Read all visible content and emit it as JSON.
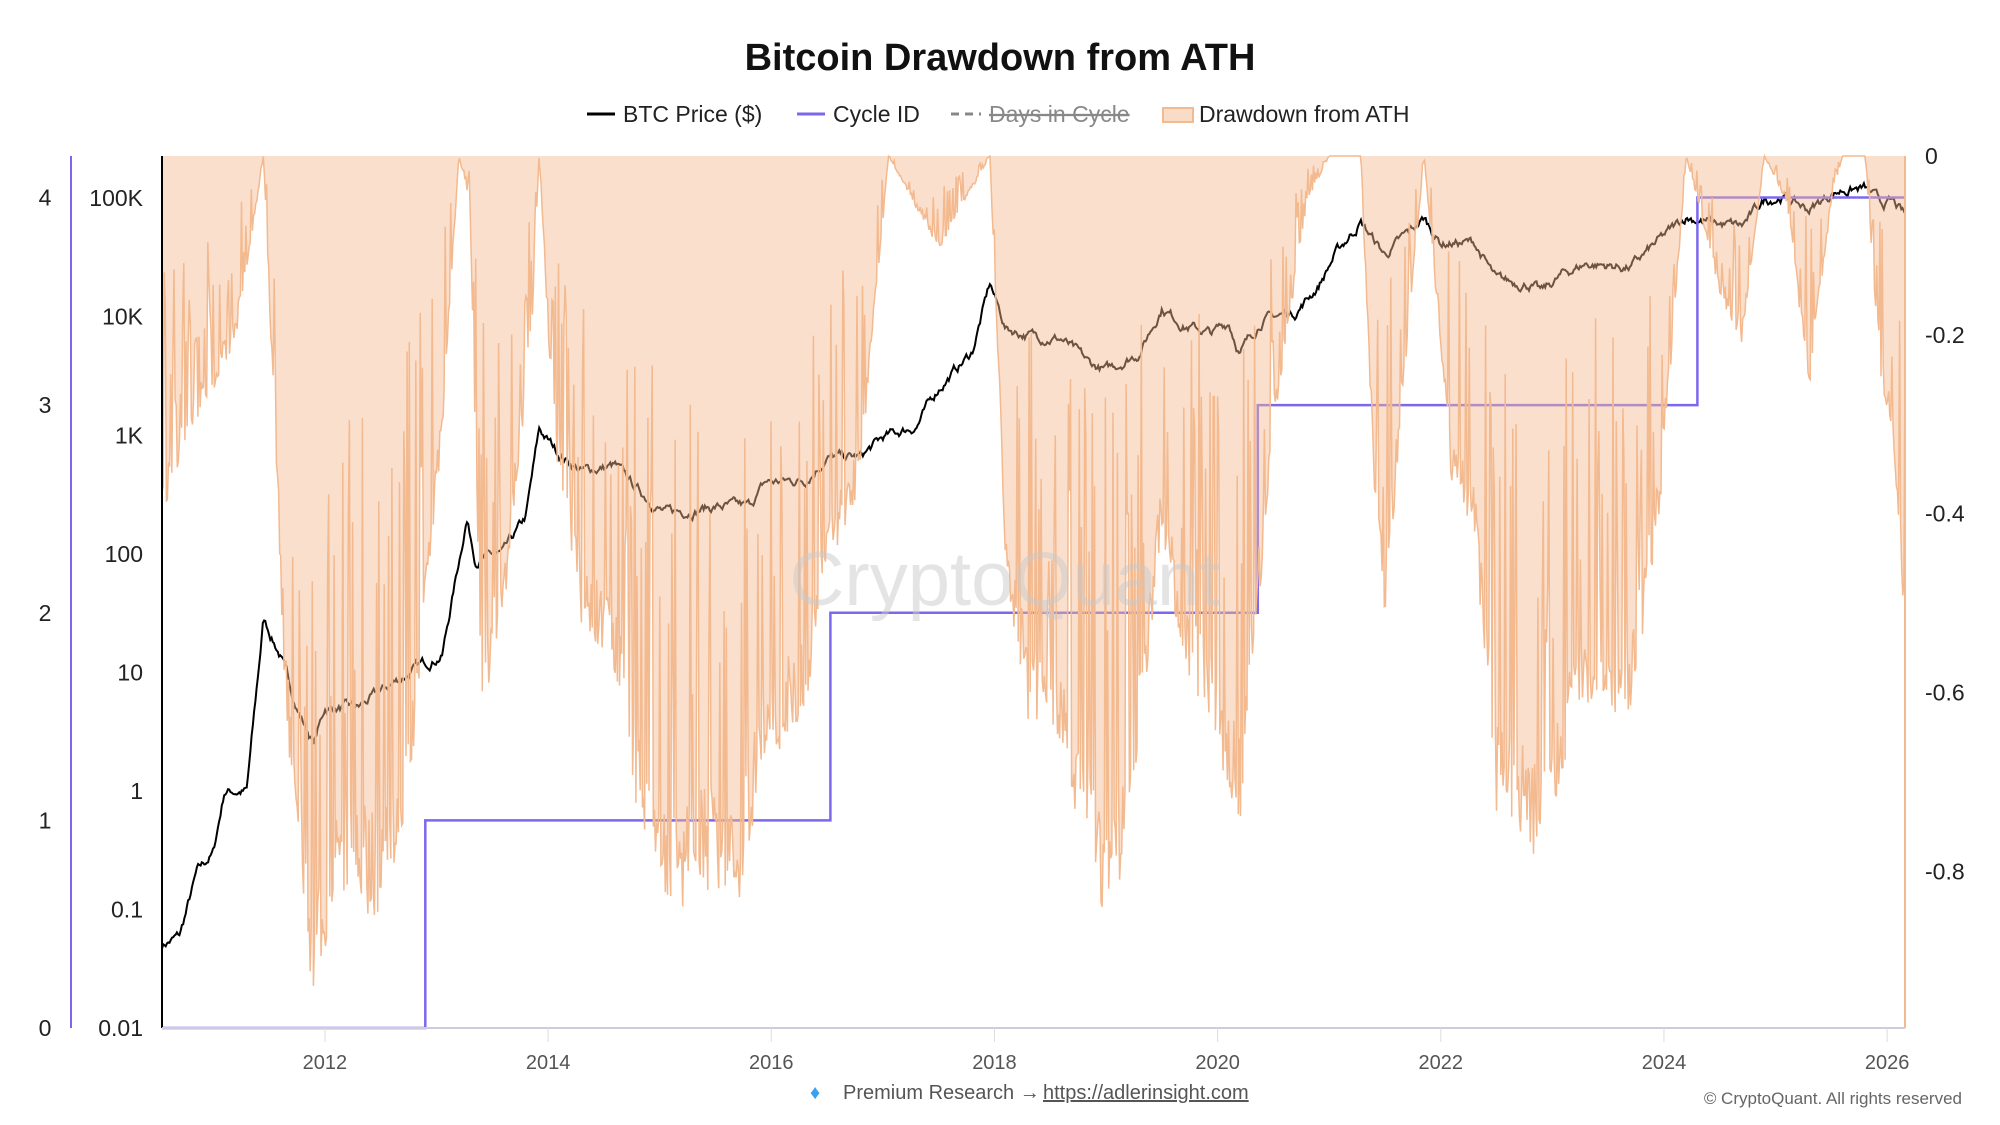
{
  "chart_data": {
    "type": "line",
    "title": "Bitcoin Drawdown from ATH",
    "legend": [
      {
        "label": "BTC Price ($)",
        "color": "#000000",
        "style": "solid"
      },
      {
        "label": "Cycle ID",
        "color": "#7b68ee",
        "style": "solid"
      },
      {
        "label": "Days in Cycle",
        "color": "#888888",
        "style": "dashed-hidden"
      },
      {
        "label": "Drawdown from ATH",
        "color": "#f3b98f",
        "style": "area"
      }
    ],
    "legend_placement": "top-center",
    "x_range": [
      2010.54,
      2026.16
    ],
    "x_ticks": [
      "2012",
      "2014",
      "2016",
      "2018",
      "2020",
      "2022",
      "2024",
      "2026"
    ],
    "price_axis": {
      "scale": "log",
      "range": [
        0.01,
        227000
      ],
      "ticks": [
        "0.01",
        "0.1",
        "1",
        "10",
        "100",
        "1K",
        "10K",
        "100K"
      ],
      "tick_values": [
        0.01,
        0.1,
        1,
        10,
        100,
        1000,
        10000,
        100000
      ]
    },
    "cycle_axis": {
      "range": [
        0,
        4.2
      ],
      "ticks": [
        "0",
        "1",
        "2",
        "3",
        "4"
      ]
    },
    "drawdown_axis": {
      "range": [
        -0.975,
        0
      ],
      "ticks": [
        "0",
        "-0.2",
        "-0.4",
        "-0.6",
        "-0.8"
      ],
      "tick_values": [
        0,
        -0.2,
        -0.4,
        -0.6,
        -0.8
      ]
    },
    "series": [
      {
        "name": "BTC Price ($)",
        "points": [
          [
            2010.54,
            0.05
          ],
          [
            2010.7,
            0.06
          ],
          [
            2010.85,
            0.2
          ],
          [
            2011.0,
            0.3
          ],
          [
            2011.1,
            1
          ],
          [
            2011.3,
            1
          ],
          [
            2011.45,
            28
          ],
          [
            2011.6,
            14
          ],
          [
            2011.75,
            5
          ],
          [
            2011.9,
            2.5
          ],
          [
            2012.0,
            5
          ],
          [
            2012.3,
            5
          ],
          [
            2012.6,
            8
          ],
          [
            2012.9,
            12
          ],
          [
            2013.05,
            14
          ],
          [
            2013.27,
            200
          ],
          [
            2013.35,
            90
          ],
          [
            2013.6,
            100
          ],
          [
            2013.8,
            200
          ],
          [
            2013.92,
            1100
          ],
          [
            2014.1,
            700
          ],
          [
            2014.3,
            500
          ],
          [
            2014.6,
            550
          ],
          [
            2014.8,
            350
          ],
          [
            2015.05,
            220
          ],
          [
            2015.5,
            250
          ],
          [
            2015.8,
            250
          ],
          [
            2015.95,
            400
          ],
          [
            2016.3,
            420
          ],
          [
            2016.5,
            650
          ],
          [
            2016.8,
            650
          ],
          [
            2017.0,
            950
          ],
          [
            2017.3,
            1200
          ],
          [
            2017.5,
            2500
          ],
          [
            2017.8,
            5000
          ],
          [
            2017.96,
            19000
          ],
          [
            2018.1,
            8000
          ],
          [
            2018.3,
            7000
          ],
          [
            2018.6,
            6500
          ],
          [
            2018.85,
            4000
          ],
          [
            2019.0,
            3500
          ],
          [
            2019.3,
            5000
          ],
          [
            2019.5,
            12000
          ],
          [
            2019.7,
            8500
          ],
          [
            2019.95,
            7200
          ],
          [
            2020.1,
            9000
          ],
          [
            2020.2,
            5000
          ],
          [
            2020.4,
            9500
          ],
          [
            2020.7,
            11000
          ],
          [
            2020.9,
            18000
          ],
          [
            2021.05,
            33000
          ],
          [
            2021.28,
            63000
          ],
          [
            2021.5,
            33000
          ],
          [
            2021.65,
            45000
          ],
          [
            2021.85,
            67000
          ],
          [
            2022.0,
            42000
          ],
          [
            2022.3,
            42000
          ],
          [
            2022.5,
            20000
          ],
          [
            2022.8,
            19000
          ],
          [
            2022.9,
            16000
          ],
          [
            2023.1,
            23000
          ],
          [
            2023.3,
            28000
          ],
          [
            2023.7,
            26000
          ],
          [
            2023.95,
            43000
          ],
          [
            2024.2,
            70000
          ],
          [
            2024.5,
            60000
          ],
          [
            2024.7,
            58000
          ],
          [
            2024.9,
            96000
          ],
          [
            2025.05,
            104000
          ],
          [
            2025.3,
            80000
          ],
          [
            2025.5,
            108000
          ],
          [
            2025.6,
            118000
          ],
          [
            2025.8,
            120000
          ],
          [
            2025.95,
            90000
          ],
          [
            2026.05,
            92000
          ],
          [
            2026.16,
            70000
          ]
        ]
      },
      {
        "name": "Cycle ID",
        "steps": [
          [
            2010.54,
            0
          ],
          [
            2012.9,
            1
          ],
          [
            2016.53,
            2
          ],
          [
            2020.36,
            3
          ],
          [
            2024.3,
            4
          ],
          [
            2026.16,
            4
          ]
        ]
      },
      {
        "name": "Drawdown from ATH",
        "points": [
          [
            2010.54,
            -0.4
          ],
          [
            2010.8,
            -0.3
          ],
          [
            2011.0,
            -0.25
          ],
          [
            2011.2,
            -0.2
          ],
          [
            2011.45,
            0
          ],
          [
            2011.55,
            -0.3
          ],
          [
            2011.65,
            -0.6
          ],
          [
            2011.9,
            -0.93
          ],
          [
            2012.1,
            -0.78
          ],
          [
            2012.3,
            -0.8
          ],
          [
            2012.5,
            -0.82
          ],
          [
            2012.75,
            -0.7
          ],
          [
            2012.9,
            -0.5
          ],
          [
            2013.05,
            -0.3
          ],
          [
            2013.2,
            0
          ],
          [
            2013.3,
            -0.05
          ],
          [
            2013.4,
            -0.6
          ],
          [
            2013.6,
            -0.5
          ],
          [
            2013.85,
            -0.2
          ],
          [
            2013.92,
            0
          ],
          [
            2014.05,
            -0.3
          ],
          [
            2014.3,
            -0.5
          ],
          [
            2014.6,
            -0.55
          ],
          [
            2014.8,
            -0.7
          ],
          [
            2015.05,
            -0.82
          ],
          [
            2015.4,
            -0.78
          ],
          [
            2015.7,
            -0.8
          ],
          [
            2015.95,
            -0.65
          ],
          [
            2016.3,
            -0.6
          ],
          [
            2016.5,
            -0.45
          ],
          [
            2016.8,
            -0.35
          ],
          [
            2017.05,
            0
          ],
          [
            2017.5,
            -0.1
          ],
          [
            2017.96,
            0
          ],
          [
            2018.1,
            -0.45
          ],
          [
            2018.3,
            -0.6
          ],
          [
            2018.6,
            -0.65
          ],
          [
            2018.85,
            -0.75
          ],
          [
            2019.0,
            -0.82
          ],
          [
            2019.2,
            -0.75
          ],
          [
            2019.5,
            -0.4
          ],
          [
            2019.7,
            -0.55
          ],
          [
            2019.95,
            -0.62
          ],
          [
            2020.2,
            -0.72
          ],
          [
            2020.36,
            -0.5
          ],
          [
            2020.5,
            -0.3
          ],
          [
            2020.8,
            -0.05
          ],
          [
            2021.0,
            0
          ],
          [
            2021.28,
            0
          ],
          [
            2021.4,
            -0.35
          ],
          [
            2021.5,
            -0.5
          ],
          [
            2021.7,
            -0.2
          ],
          [
            2021.85,
            0
          ],
          [
            2022.1,
            -0.35
          ],
          [
            2022.3,
            -0.4
          ],
          [
            2022.5,
            -0.7
          ],
          [
            2022.7,
            -0.72
          ],
          [
            2022.9,
            -0.76
          ],
          [
            2023.1,
            -0.65
          ],
          [
            2023.3,
            -0.6
          ],
          [
            2023.7,
            -0.6
          ],
          [
            2023.95,
            -0.4
          ],
          [
            2024.2,
            0
          ],
          [
            2024.5,
            -0.15
          ],
          [
            2024.7,
            -0.2
          ],
          [
            2024.9,
            0
          ],
          [
            2025.1,
            -0.05
          ],
          [
            2025.3,
            -0.25
          ],
          [
            2025.5,
            -0.05
          ],
          [
            2025.6,
            0
          ],
          [
            2025.8,
            0
          ],
          [
            2025.95,
            -0.25
          ],
          [
            2026.05,
            -0.3
          ],
          [
            2026.12,
            -0.45
          ],
          [
            2026.16,
            -0.5
          ]
        ]
      }
    ]
  },
  "watermark": "CryptoQuant",
  "footer": {
    "premium": "Premium Research →",
    "link": "https://adlerinsight.com",
    "copyright": "© CryptoQuant. All rights reserved"
  }
}
